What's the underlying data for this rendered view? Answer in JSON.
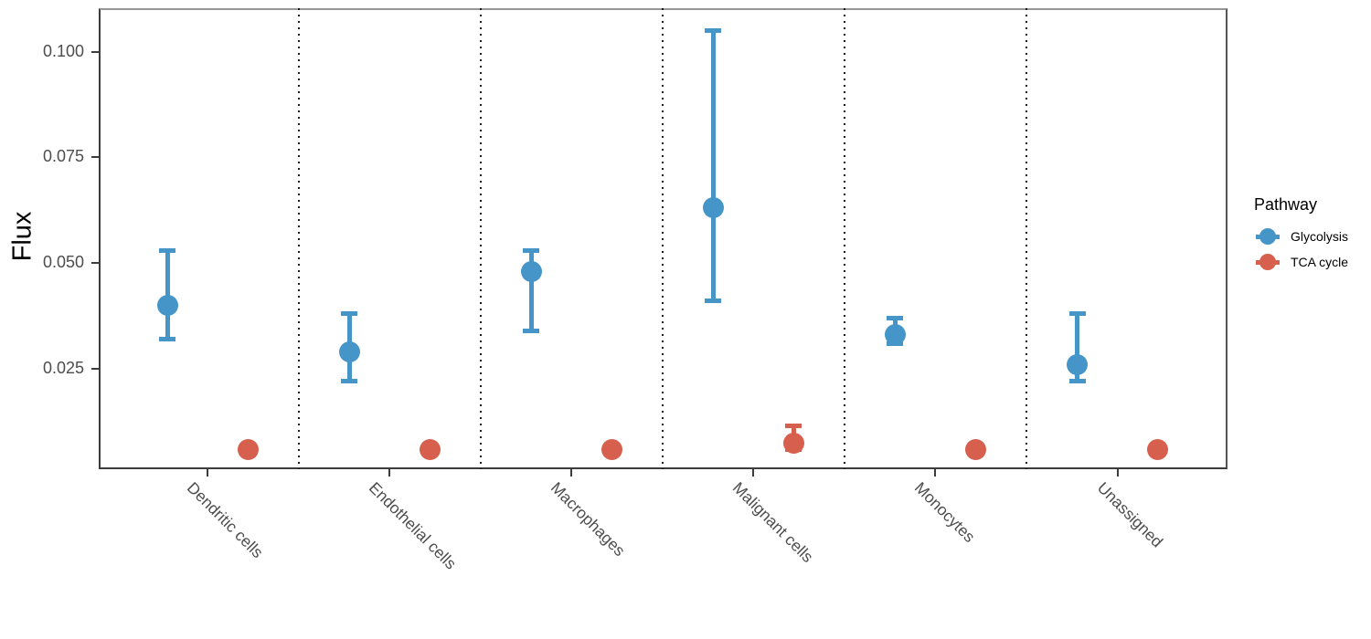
{
  "chart_data": {
    "type": "scatter",
    "subtype": "pointrange-dodged",
    "title": "",
    "xlabel": "",
    "ylabel": "Flux",
    "categories": [
      "Dendritic cells",
      "Endothelial cells",
      "Macrophages",
      "Malignant cells",
      "Monocytes",
      "Unassigned"
    ],
    "yticks": [
      0.025,
      0.05,
      0.075,
      0.1
    ],
    "ytick_labels": [
      "0.025",
      "0.050",
      "0.075",
      "0.100"
    ],
    "ylim": [
      0.001,
      0.11
    ],
    "grid": false,
    "category_separators": "dotted",
    "legend": {
      "position": "right",
      "title": "Pathway",
      "entries": [
        {
          "label": "Glycolysis",
          "color": "#4695C8"
        },
        {
          "label": "TCA cycle",
          "color": "#D6604D"
        }
      ]
    },
    "series": [
      {
        "name": "Glycolysis",
        "color": "#4695C8",
        "points": [
          {
            "category": "Dendritic cells",
            "value": 0.04,
            "ymin": 0.032,
            "ymax": 0.053
          },
          {
            "category": "Endothelial cells",
            "value": 0.029,
            "ymin": 0.022,
            "ymax": 0.038
          },
          {
            "category": "Macrophages",
            "value": 0.048,
            "ymin": 0.034,
            "ymax": 0.053
          },
          {
            "category": "Malignant cells",
            "value": 0.063,
            "ymin": 0.041,
            "ymax": 0.105
          },
          {
            "category": "Monocytes",
            "value": 0.033,
            "ymin": 0.031,
            "ymax": 0.037
          },
          {
            "category": "Unassigned",
            "value": 0.026,
            "ymin": 0.022,
            "ymax": 0.038
          }
        ]
      },
      {
        "name": "TCA cycle",
        "color": "#D6604D",
        "points": [
          {
            "category": "Dendritic cells",
            "value": 0.006,
            "ymin": 0.006,
            "ymax": 0.006
          },
          {
            "category": "Endothelial cells",
            "value": 0.006,
            "ymin": 0.006,
            "ymax": 0.006
          },
          {
            "category": "Macrophages",
            "value": 0.006,
            "ymin": 0.006,
            "ymax": 0.006
          },
          {
            "category": "Malignant cells",
            "value": 0.0075,
            "ymin": 0.006,
            "ymax": 0.0115
          },
          {
            "category": "Monocytes",
            "value": 0.006,
            "ymin": 0.006,
            "ymax": 0.006
          },
          {
            "category": "Unassigned",
            "value": 0.006,
            "ymin": 0.006,
            "ymax": 0.006
          }
        ]
      }
    ],
    "colors": {
      "glycolysis": "#4695C8",
      "tca_cycle": "#D6604D",
      "axis_text": "#4d4d4d",
      "axis_line": "#3c3c3c",
      "panel_top_border": "#979797",
      "separator": "#1a1a1a"
    }
  }
}
